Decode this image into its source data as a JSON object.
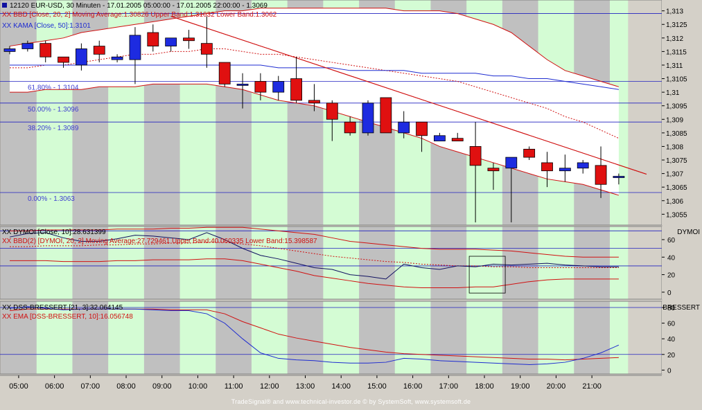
{
  "header": {
    "title": "12120  EUR-USD, 30 Minuten - 17.01.2005 05:00:00 - 17.01.2005 22:00:00 - 1.3069",
    "bb_legend": "XX BBD [Close, 20, 2] Moving Average:1.30826 Upper Band:1.31032 Lower Band:1.3062",
    "kama_legend": "XX KAMA [Close, 50]:1.3101"
  },
  "panels": {
    "dymoi": {
      "legend1": "XX DYMOI [Close, 10]:28.631399",
      "legend2": "XX BBD(2) [DYMOI, 20, 2] Moving Average:27.729461 Upper Band:40.060335 Lower Band:15.398587",
      "axis_title": "DYMOI",
      "ticks": [
        "60",
        "40",
        "20",
        "0"
      ]
    },
    "dss": {
      "legend1": "XX DSS-BRESSERT [21, 3]:32.064145",
      "legend2": "XX EMA [DSS-BRESSERT, 10]:16.056748",
      "axis_title": "BRESSERT",
      "ticks": [
        "80",
        "60",
        "40",
        "20",
        "0"
      ]
    }
  },
  "fib_labels": [
    "61.80% - 1.3104",
    "50.00% - 1.3096",
    "38.20% - 1.3089",
    "0.00% - 1.3063"
  ],
  "footer": "TradeSignal® and www.technical-investor.de © by  SystemSoft, www.systemsoft.de",
  "colors": {
    "up": "#1d2be0",
    "down": "#e01010",
    "band": "#d01010",
    "kama": "#1d2bd0",
    "green_col": "#d4fcd4",
    "gray_col": "#c0c0c0"
  },
  "chart_data": [
    {
      "type": "candlestick",
      "title": "12120  EUR-USD, 30 Minuten - 17.01.2005 05:00:00 - 17.01.2005 22:00:00 - 1.3069",
      "xlabel": "",
      "ylabel": "",
      "x_tick_labels": [
        "05:00",
        "06:00",
        "07:00",
        "08:00",
        "09:00",
        "10:00",
        "11:00",
        "12:00",
        "13:00",
        "14:00",
        "15:00",
        "16:00",
        "17:00",
        "18:00",
        "19:00",
        "20:00",
        "21:00"
      ],
      "y_tick_labels": [
        "1,313",
        "1,3125",
        "1,312",
        "1,3115",
        "1,311",
        "1,3105",
        "1,31",
        "1,3095",
        "1,309",
        "1,3085",
        "1,308",
        "1,3075",
        "1,307",
        "1,3065",
        "1,306",
        "1,3055"
      ],
      "ylim": [
        1.3051,
        1.3134
      ],
      "candles": [
        {
          "o": 1.3115,
          "h": 1.3117,
          "l": 1.3114,
          "c": 1.3116
        },
        {
          "o": 1.3116,
          "h": 1.3119,
          "l": 1.3115,
          "c": 1.3118
        },
        {
          "o": 1.3118,
          "h": 1.3119,
          "l": 1.3111,
          "c": 1.3113
        },
        {
          "o": 1.3113,
          "h": 1.3113,
          "l": 1.3109,
          "c": 1.3111
        },
        {
          "o": 1.311,
          "h": 1.3118,
          "l": 1.3108,
          "c": 1.3116
        },
        {
          "o": 1.3117,
          "h": 1.3119,
          "l": 1.3111,
          "c": 1.3114
        },
        {
          "o": 1.3112,
          "h": 1.3114,
          "l": 1.3111,
          "c": 1.3113
        },
        {
          "o": 1.3112,
          "h": 1.3124,
          "l": 1.3103,
          "c": 1.3121
        },
        {
          "o": 1.3122,
          "h": 1.3125,
          "l": 1.3115,
          "c": 1.3117
        },
        {
          "o": 1.3117,
          "h": 1.312,
          "l": 1.3115,
          "c": 1.312
        },
        {
          "o": 1.312,
          "h": 1.3123,
          "l": 1.3116,
          "c": 1.3119
        },
        {
          "o": 1.3118,
          "h": 1.3128,
          "l": 1.3109,
          "c": 1.3114
        },
        {
          "o": 1.3111,
          "h": 1.3111,
          "l": 1.3102,
          "c": 1.3103
        },
        {
          "o": 1.3103,
          "h": 1.3107,
          "l": 1.3094,
          "c": 1.3103
        },
        {
          "o": 1.3104,
          "h": 1.3107,
          "l": 1.3097,
          "c": 1.31
        },
        {
          "o": 1.31,
          "h": 1.3106,
          "l": 1.3097,
          "c": 1.3104
        },
        {
          "o": 1.3105,
          "h": 1.3113,
          "l": 1.3096,
          "c": 1.3097
        },
        {
          "o": 1.3097,
          "h": 1.3103,
          "l": 1.3093,
          "c": 1.3096
        },
        {
          "o": 1.3096,
          "h": 1.3097,
          "l": 1.3082,
          "c": 1.309
        },
        {
          "o": 1.3089,
          "h": 1.3091,
          "l": 1.3084,
          "c": 1.3085
        },
        {
          "o": 1.3085,
          "h": 1.3097,
          "l": 1.3084,
          "c": 1.3096
        },
        {
          "o": 1.3098,
          "h": 1.3098,
          "l": 1.3085,
          "c": 1.3085
        },
        {
          "o": 1.3085,
          "h": 1.3093,
          "l": 1.3083,
          "c": 1.3089
        },
        {
          "o": 1.3089,
          "h": 1.3089,
          "l": 1.3078,
          "c": 1.3084
        },
        {
          "o": 1.3082,
          "h": 1.3085,
          "l": 1.3082,
          "c": 1.3084
        },
        {
          "o": 1.3083,
          "h": 1.3085,
          "l": 1.3082,
          "c": 1.3082
        },
        {
          "o": 1.308,
          "h": 1.3089,
          "l": 1.3052,
          "c": 1.3073
        },
        {
          "o": 1.3072,
          "h": 1.3074,
          "l": 1.3064,
          "c": 1.3071
        },
        {
          "o": 1.3072,
          "h": 1.3076,
          "l": 1.3052,
          "c": 1.3076
        },
        {
          "o": 1.3079,
          "h": 1.308,
          "l": 1.3075,
          "c": 1.3076
        },
        {
          "o": 1.3074,
          "h": 1.3078,
          "l": 1.3065,
          "c": 1.3071
        },
        {
          "o": 1.3071,
          "h": 1.3077,
          "l": 1.3067,
          "c": 1.3072
        },
        {
          "o": 1.3072,
          "h": 1.3075,
          "l": 1.307,
          "c": 1.3074
        },
        {
          "o": 1.3073,
          "h": 1.308,
          "l": 1.3061,
          "c": 1.3066
        },
        {
          "o": 1.3069,
          "h": 1.307,
          "l": 1.3066,
          "c": 1.3069
        }
      ],
      "upper_band": [
        1.3117,
        1.3118,
        1.3119,
        1.312,
        1.3122,
        1.3123,
        1.3124,
        1.3125,
        1.3126,
        1.3127,
        1.3128,
        1.3129,
        1.313,
        1.313,
        1.3131,
        1.3131,
        1.3131,
        1.3131,
        1.3131,
        1.3131,
        1.3131,
        1.3131,
        1.313,
        1.313,
        1.313,
        1.3129,
        1.3127,
        1.3125,
        1.3122,
        1.3117,
        1.3112,
        1.3108,
        1.3106,
        1.3104,
        1.3102
      ],
      "middle_band": [
        1.3109,
        1.3109,
        1.311,
        1.311,
        1.3111,
        1.3112,
        1.3113,
        1.3114,
        1.3114,
        1.3115,
        1.3115,
        1.3116,
        1.3116,
        1.3115,
        1.3114,
        1.3114,
        1.3113,
        1.3112,
        1.3111,
        1.311,
        1.3109,
        1.3108,
        1.3107,
        1.3106,
        1.3105,
        1.3104,
        1.3102,
        1.31,
        1.3098,
        1.3096,
        1.3094,
        1.3091,
        1.3089,
        1.3086,
        1.3083
      ],
      "lower_band": [
        1.31,
        1.31,
        1.3101,
        1.3101,
        1.3101,
        1.3102,
        1.3102,
        1.3102,
        1.3103,
        1.3103,
        1.3103,
        1.3103,
        1.3102,
        1.3101,
        1.3099,
        1.3097,
        1.3096,
        1.3095,
        1.3093,
        1.3091,
        1.3089,
        1.3087,
        1.3085,
        1.3083,
        1.308,
        1.3078,
        1.3076,
        1.3074,
        1.3072,
        1.307,
        1.3068,
        1.3067,
        1.3066,
        1.3064,
        1.3062
      ],
      "kama": [
        1.311,
        1.311,
        1.311,
        1.311,
        1.311,
        1.311,
        1.311,
        1.311,
        1.311,
        1.311,
        1.311,
        1.311,
        1.311,
        1.311,
        1.311,
        1.3109,
        1.3109,
        1.3109,
        1.3109,
        1.3108,
        1.3108,
        1.3108,
        1.3108,
        1.3107,
        1.3107,
        1.3107,
        1.3107,
        1.3106,
        1.3106,
        1.3105,
        1.3105,
        1.3104,
        1.3103,
        1.3102,
        1.3101
      ],
      "trend_lines": [
        {
          "from": [
            9,
            1.3128
          ],
          "to": [
            34,
            1.3069
          ]
        },
        {
          "from": [
            9,
            1.3128
          ],
          "to": [
            34,
            1.3069
          ]
        }
      ],
      "fib_levels": [
        1.3104,
        1.3096,
        1.3089,
        1.3063
      ],
      "horizontal_lines": [
        1.3129,
        1.3104,
        1.3096,
        1.3089,
        1.3063
      ]
    },
    {
      "type": "line",
      "title": "DYMOI",
      "ylim": [
        -8,
        75
      ],
      "y_tick_labels": [
        "60",
        "40",
        "20",
        "0"
      ],
      "series": [
        {
          "name": "DYMOI",
          "values": [
            63,
            67,
            68,
            62,
            58,
            58,
            61,
            65,
            64,
            62,
            60,
            68,
            60,
            50,
            42,
            38,
            33,
            28,
            26,
            20,
            18,
            15,
            32,
            28,
            26,
            30,
            29,
            32,
            31,
            32,
            33,
            31,
            30,
            29,
            29
          ]
        },
        {
          "name": "Moving Average",
          "values": [
            52,
            52,
            53,
            53,
            53,
            54,
            54,
            55,
            55,
            56,
            56,
            57,
            57,
            55,
            53,
            50,
            47,
            44,
            41,
            39,
            37,
            35,
            34,
            32,
            31,
            30,
            30,
            29,
            29,
            28,
            28,
            28,
            28,
            28,
            28
          ]
        },
        {
          "name": "Upper Band",
          "values": [
            70,
            70,
            71,
            71,
            71,
            71,
            72,
            72,
            72,
            73,
            73,
            74,
            74,
            74,
            72,
            70,
            68,
            66,
            62,
            58,
            56,
            54,
            52,
            50,
            49,
            49,
            49,
            48,
            47,
            45,
            43,
            41,
            40,
            40,
            40
          ]
        },
        {
          "name": "Lower Band",
          "values": [
            36,
            36,
            36,
            35,
            35,
            35,
            36,
            36,
            37,
            37,
            37,
            38,
            38,
            36,
            32,
            28,
            24,
            19,
            16,
            13,
            10,
            8,
            6,
            5,
            5,
            5,
            6,
            6,
            9,
            12,
            14,
            15,
            15,
            15,
            15
          ]
        }
      ],
      "horizontal_lines": [
        70,
        50,
        30
      ]
    },
    {
      "type": "line",
      "title": "DSS-BRESSERT",
      "ylim": [
        -5,
        88
      ],
      "y_tick_labels": [
        "80",
        "60",
        "40",
        "20",
        "0"
      ],
      "series": [
        {
          "name": "DSS-BRESSERT",
          "values": [
            79,
            81,
            79,
            77,
            78,
            78,
            78,
            78,
            77,
            76,
            76,
            72,
            60,
            40,
            22,
            15,
            13,
            12,
            10,
            9,
            9,
            10,
            15,
            14,
            12,
            11,
            10,
            9,
            8,
            7,
            8,
            10,
            15,
            22,
            32
          ]
        },
        {
          "name": "EMA",
          "values": [
            76,
            78,
            78,
            78,
            78,
            78,
            78,
            78,
            78,
            77,
            77,
            77,
            72,
            62,
            54,
            46,
            41,
            37,
            33,
            29,
            26,
            23,
            21,
            20,
            19,
            18,
            17,
            16,
            15,
            14,
            14,
            13,
            14,
            15,
            16
          ]
        }
      ],
      "horizontal_lines": [
        80,
        20
      ]
    }
  ]
}
